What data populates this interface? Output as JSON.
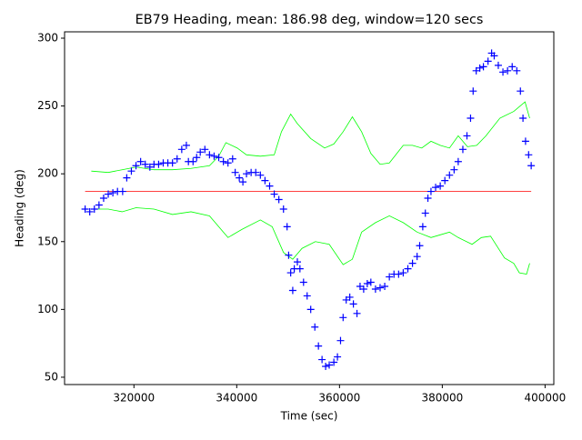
{
  "chart_data": {
    "type": "line",
    "title": "EB79 Heading, mean: 186.98 deg, window=120 secs",
    "xlabel": "Time (sec)",
    "ylabel": "Heading (deg)",
    "xlim": [
      306500,
      401700
    ],
    "ylim": [
      44.6,
      304.7
    ],
    "xticks": [
      320000,
      340000,
      360000,
      380000,
      400000
    ],
    "yticks": [
      50,
      100,
      150,
      200,
      250,
      300
    ],
    "series": [
      {
        "color": "#0000ff",
        "marker": "+",
        "x": [
          310500,
          311400,
          312300,
          313200,
          314100,
          315000,
          315900,
          316800,
          317800,
          318600,
          319500,
          320400,
          321300,
          322200,
          323100,
          323900,
          324800,
          325700,
          326600,
          327500,
          328400,
          329300,
          330200,
          330600,
          331500,
          332200,
          332900,
          333800,
          334700,
          335600,
          336500,
          337400,
          338300,
          339200,
          339700,
          340500,
          341200,
          341900,
          342800,
          343700,
          344600,
          345500,
          346400,
          347300,
          348200,
          349100,
          349800,
          350100,
          350500,
          350900,
          351200,
          351800,
          352300,
          353000,
          353700,
          354400,
          355200,
          355900,
          356600,
          357300,
          358000,
          358900,
          359600,
          360200,
          360700,
          361300,
          362000,
          362700,
          363400,
          364000,
          364700,
          365400,
          366100,
          367000,
          367900,
          368800,
          369700,
          370600,
          371500,
          372400,
          373300,
          374200,
          375100,
          375600,
          376200,
          376700,
          377200,
          377800,
          378700,
          379600,
          380500,
          381400,
          382300,
          383100,
          384000,
          384800,
          385500,
          386000,
          386600,
          387300,
          388000,
          388900,
          389600,
          390100,
          390900,
          391800,
          392700,
          393600,
          394500,
          395200,
          395700,
          396200,
          396800,
          397300
        ],
        "values": [
          174,
          172,
          174,
          177,
          182,
          185,
          186,
          187,
          187,
          197,
          202,
          206,
          209,
          207,
          205,
          207,
          207,
          208,
          208,
          208,
          211,
          218,
          221,
          209,
          209,
          212,
          216,
          218,
          214,
          213,
          212,
          209,
          208,
          211,
          201,
          197,
          194,
          200,
          201,
          201,
          199,
          195,
          191,
          185,
          181,
          174,
          161,
          140,
          127,
          114,
          130,
          135,
          130,
          120,
          110,
          100,
          87,
          73,
          63,
          58,
          59,
          61,
          65,
          77,
          94,
          107,
          109,
          104,
          97,
          117,
          115,
          119,
          120,
          115,
          116,
          117,
          124,
          126,
          126,
          127,
          130,
          134,
          139,
          147,
          161,
          171,
          182,
          187,
          190,
          191,
          195,
          199,
          203,
          209,
          218,
          228,
          241,
          261,
          276,
          278,
          279,
          283,
          289,
          287,
          280,
          275,
          276,
          279,
          276,
          261,
          241,
          224,
          214,
          206
        ]
      },
      {
        "color": "#ff0000",
        "x": [
          310500,
          397300
        ],
        "values": [
          186.98,
          186.98
        ]
      },
      {
        "color": "#00ff00",
        "x": [
          311700,
          315000,
          317700,
          320400,
          323900,
          327500,
          331100,
          334700,
          336500,
          337900,
          340100,
          341900,
          344600,
          347300,
          348700,
          350500,
          351800,
          354400,
          357100,
          358900,
          360700,
          362500,
          364300,
          366100,
          367900,
          369700,
          372400,
          374200,
          376000,
          377800,
          379600,
          381400,
          383100,
          384900,
          386700,
          388500,
          391200,
          393900,
          396100,
          397000
        ],
        "values": [
          202,
          201,
          203,
          205,
          203,
          203,
          204,
          206,
          213,
          223,
          219,
          214,
          213,
          214,
          231,
          244,
          237,
          226,
          219,
          222,
          231,
          242,
          231,
          215,
          207,
          208,
          221,
          221,
          219,
          224,
          221,
          219,
          228,
          220,
          221,
          228,
          241,
          246,
          253,
          241
        ]
      },
      {
        "color": "#00ff00",
        "x": [
          311700,
          315000,
          317700,
          320400,
          323900,
          327500,
          331100,
          334700,
          336500,
          338300,
          341000,
          344600,
          346900,
          349100,
          350900,
          352700,
          355300,
          358000,
          360700,
          362500,
          364300,
          367000,
          369700,
          372400,
          375100,
          377800,
          379600,
          381400,
          383100,
          385800,
          387600,
          389400,
          392100,
          393900,
          395000,
          396400,
          397000
        ],
        "values": [
          174,
          174,
          172,
          175,
          174,
          170,
          172,
          169,
          161,
          153,
          159,
          166,
          161,
          142,
          137,
          145,
          150,
          148,
          133,
          137,
          157,
          164,
          169,
          164,
          157,
          153,
          155,
          157,
          153,
          148,
          153,
          154,
          138,
          134,
          127,
          126,
          134
        ]
      }
    ]
  }
}
